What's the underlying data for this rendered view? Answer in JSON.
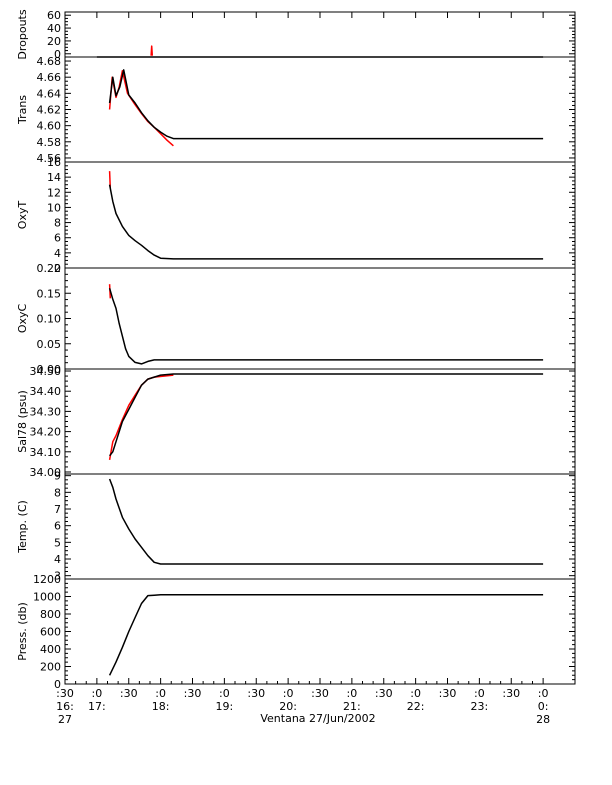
{
  "chart_data": {
    "type": "line",
    "xlabel": "Ventana 27/Jun/2002",
    "x_ticks": [
      {
        "l1": ":30",
        "l2": "16:",
        "l3": "27"
      },
      {
        "l1": ":0",
        "l2": "17:",
        "l3": ""
      },
      {
        "l1": ":30",
        "l2": "",
        "l3": ""
      },
      {
        "l1": ":0",
        "l2": "18:",
        "l3": ""
      },
      {
        "l1": ":30",
        "l2": "",
        "l3": ""
      },
      {
        "l1": ":0",
        "l2": "19:",
        "l3": ""
      },
      {
        "l1": ":30",
        "l2": "",
        "l3": ""
      },
      {
        "l1": ":0",
        "l2": "20:",
        "l3": ""
      },
      {
        "l1": ":30",
        "l2": "",
        "l3": ""
      },
      {
        "l1": ":0",
        "l2": "21:",
        "l3": ""
      },
      {
        "l1": ":30",
        "l2": "",
        "l3": ""
      },
      {
        "l1": ":0",
        "l2": "22:",
        "l3": ""
      },
      {
        "l1": ":30",
        "l2": "",
        "l3": ""
      },
      {
        "l1": ":0",
        "l2": "23:",
        "l3": ""
      },
      {
        "l1": ":30",
        "l2": "",
        "l3": ""
      },
      {
        "l1": ":0",
        "l2": "0:",
        "l3": "28"
      }
    ],
    "xlim": [
      16.5,
      24.5
    ],
    "panels": [
      {
        "ylabel": "Dropouts",
        "ylim": [
          -5,
          65
        ],
        "yticks": [
          0,
          20,
          40,
          60
        ],
        "ytick_labels": [
          "0",
          "20",
          "40",
          "60"
        ],
        "series": [
          {
            "color": "#000000",
            "points": [
              [
                17.0,
                -5
              ],
              [
                18.2,
                -5
              ],
              [
                24.0,
                -5
              ]
            ]
          },
          {
            "color": "#ff0000",
            "points": [
              [
                17.85,
                -3
              ],
              [
                17.86,
                12
              ],
              [
                17.87,
                -3
              ]
            ]
          }
        ]
      },
      {
        "ylabel": "Trans",
        "ylim": [
          4.555,
          4.685
        ],
        "yticks": [
          4.56,
          4.58,
          4.6,
          4.62,
          4.64,
          4.66,
          4.68
        ],
        "ytick_labels": [
          "4.56",
          "4.58",
          "4.60",
          "4.62",
          "4.64",
          "4.66",
          "4.68"
        ],
        "series": [
          {
            "color": "#ff0000",
            "points": [
              [
                17.2,
                4.62
              ],
              [
                17.24,
                4.66
              ],
              [
                17.3,
                4.635
              ],
              [
                17.35,
                4.648
              ],
              [
                17.4,
                4.668
              ],
              [
                17.48,
                4.64
              ],
              [
                17.6,
                4.626
              ],
              [
                17.7,
                4.615
              ],
              [
                17.8,
                4.605
              ],
              [
                17.9,
                4.598
              ],
              [
                18.0,
                4.59
              ],
              [
                18.1,
                4.582
              ],
              [
                18.2,
                4.575
              ]
            ]
          },
          {
            "color": "#000000",
            "points": [
              [
                17.2,
                4.628
              ],
              [
                17.25,
                4.66
              ],
              [
                17.3,
                4.637
              ],
              [
                17.36,
                4.648
              ],
              [
                17.42,
                4.669
              ],
              [
                17.5,
                4.638
              ],
              [
                17.6,
                4.628
              ],
              [
                17.7,
                4.616
              ],
              [
                17.8,
                4.606
              ],
              [
                17.9,
                4.598
              ],
              [
                18.0,
                4.592
              ],
              [
                18.1,
                4.587
              ],
              [
                18.2,
                4.584
              ],
              [
                24.0,
                4.584
              ]
            ]
          }
        ]
      },
      {
        "ylabel": "OxyT",
        "ylim": [
          2,
          16
        ],
        "yticks": [
          2,
          4,
          6,
          8,
          10,
          12,
          14,
          16
        ],
        "ytick_labels": [
          "2",
          "4",
          "6",
          "8",
          "10",
          "12",
          "14",
          "16"
        ],
        "series": [
          {
            "color": "#ff0000",
            "points": [
              [
                17.2,
                14.8
              ],
              [
                17.21,
                12.5
              ]
            ]
          },
          {
            "color": "#000000",
            "points": [
              [
                17.2,
                13.0
              ],
              [
                17.25,
                10.8
              ],
              [
                17.3,
                9.2
              ],
              [
                17.4,
                7.5
              ],
              [
                17.5,
                6.3
              ],
              [
                17.6,
                5.6
              ],
              [
                17.7,
                5.0
              ],
              [
                17.8,
                4.3
              ],
              [
                17.9,
                3.7
              ],
              [
                18.0,
                3.3
              ],
              [
                18.2,
                3.2
              ],
              [
                24.0,
                3.2
              ]
            ]
          }
        ]
      },
      {
        "ylabel": "OxyC",
        "ylim": [
          0,
          0.2
        ],
        "yticks": [
          0.0,
          0.05,
          0.1,
          0.15,
          0.2
        ],
        "ytick_labels": [
          "0.00",
          "0.05",
          "0.10",
          "0.15",
          "0.20"
        ],
        "series": [
          {
            "color": "#ff0000",
            "points": [
              [
                17.2,
                0.168
              ],
              [
                17.21,
                0.14
              ]
            ]
          },
          {
            "color": "#000000",
            "points": [
              [
                17.2,
                0.16
              ],
              [
                17.25,
                0.138
              ],
              [
                17.3,
                0.12
              ],
              [
                17.35,
                0.09
              ],
              [
                17.4,
                0.065
              ],
              [
                17.45,
                0.04
              ],
              [
                17.5,
                0.025
              ],
              [
                17.6,
                0.013
              ],
              [
                17.7,
                0.01
              ],
              [
                17.8,
                0.015
              ],
              [
                17.9,
                0.018
              ],
              [
                18.0,
                0.018
              ],
              [
                18.2,
                0.018
              ],
              [
                24.0,
                0.018
              ]
            ]
          }
        ]
      },
      {
        "ylabel": "Sal78 (psu)",
        "ylim": [
          33.99,
          34.51
        ],
        "yticks": [
          34.0,
          34.1,
          34.2,
          34.3,
          34.4,
          34.5
        ],
        "ytick_labels": [
          "34.00",
          "34.10",
          "34.20",
          "34.30",
          "34.40",
          "34.50"
        ],
        "series": [
          {
            "color": "#ff0000",
            "points": [
              [
                17.2,
                34.06
              ],
              [
                17.25,
                34.15
              ],
              [
                17.3,
                34.18
              ],
              [
                17.4,
                34.26
              ],
              [
                17.5,
                34.33
              ],
              [
                17.6,
                34.38
              ],
              [
                17.7,
                34.43
              ],
              [
                17.8,
                34.46
              ],
              [
                17.9,
                34.47
              ],
              [
                18.2,
                34.48
              ]
            ]
          },
          {
            "color": "#000000",
            "points": [
              [
                17.2,
                34.08
              ],
              [
                17.25,
                34.1
              ],
              [
                17.3,
                34.15
              ],
              [
                17.4,
                34.25
              ],
              [
                17.5,
                34.31
              ],
              [
                17.6,
                34.37
              ],
              [
                17.7,
                34.43
              ],
              [
                17.8,
                34.46
              ],
              [
                17.9,
                34.47
              ],
              [
                18.0,
                34.48
              ],
              [
                18.2,
                34.485
              ],
              [
                24.0,
                34.485
              ]
            ]
          }
        ]
      },
      {
        "ylabel": "Temp. (C)",
        "ylim": [
          2.8,
          9.1
        ],
        "yticks": [
          3,
          4,
          5,
          6,
          7,
          8,
          9
        ],
        "ytick_labels": [
          "3",
          "4",
          "5",
          "6",
          "7",
          "8",
          "9"
        ],
        "series": [
          {
            "color": "#000000",
            "points": [
              [
                17.2,
                8.8
              ],
              [
                17.25,
                8.3
              ],
              [
                17.3,
                7.6
              ],
              [
                17.4,
                6.5
              ],
              [
                17.5,
                5.8
              ],
              [
                17.6,
                5.2
              ],
              [
                17.7,
                4.7
              ],
              [
                17.8,
                4.2
              ],
              [
                17.9,
                3.8
              ],
              [
                18.0,
                3.7
              ],
              [
                18.2,
                3.7
              ],
              [
                24.0,
                3.7
              ]
            ]
          }
        ]
      },
      {
        "ylabel": "Press. (db)",
        "ylim": [
          0,
          1200
        ],
        "yticks": [
          0,
          200,
          400,
          600,
          800,
          1000,
          1200
        ],
        "ytick_labels": [
          "0",
          "200",
          "400",
          "600",
          "800",
          "1000",
          "1200"
        ],
        "series": [
          {
            "color": "#000000",
            "points": [
              [
                17.2,
                100
              ],
              [
                17.3,
                250
              ],
              [
                17.4,
                420
              ],
              [
                17.5,
                600
              ],
              [
                17.6,
                760
              ],
              [
                17.7,
                920
              ],
              [
                17.8,
                1010
              ],
              [
                17.9,
                1015
              ],
              [
                18.0,
                1020
              ],
              [
                18.2,
                1020
              ],
              [
                24.0,
                1020
              ]
            ]
          }
        ]
      }
    ]
  }
}
